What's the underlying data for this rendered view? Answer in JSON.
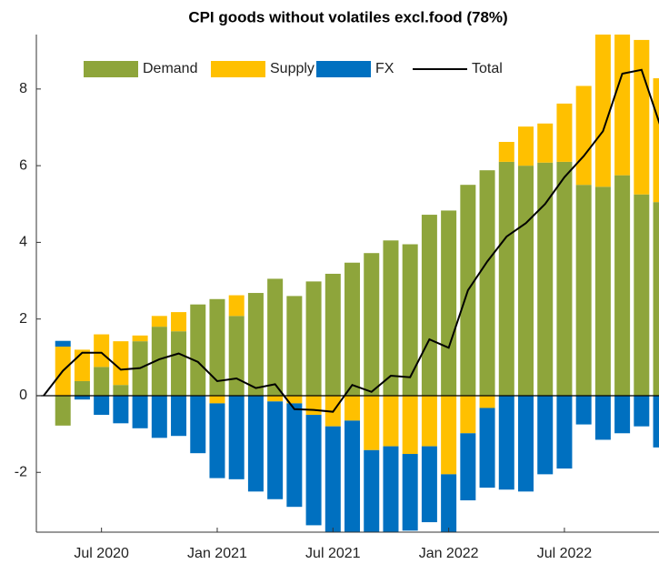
{
  "chart_data": {
    "type": "bar",
    "title": "CPI goods without volatiles excl.food (78%)",
    "categories": [
      null,
      null,
      null,
      "Jul 2020",
      null,
      null,
      null,
      null,
      null,
      "Jan 2021",
      null,
      null,
      null,
      null,
      null,
      "Jul 2021",
      null,
      null,
      null,
      null,
      null,
      "Jan 2022",
      null,
      null,
      null,
      null,
      null,
      "Jul 2022",
      null,
      null,
      null,
      null,
      null
    ],
    "series": [
      {
        "name": "Demand",
        "type": "bar",
        "color": "#8ea53b",
        "values": [
          0,
          -0.78,
          0.38,
          0.75,
          0.28,
          1.42,
          1.8,
          1.68,
          2.38,
          2.52,
          2.08,
          2.68,
          3.05,
          2.6,
          2.98,
          3.18,
          3.47,
          3.72,
          4.05,
          3.95,
          4.72,
          4.83,
          5.5,
          5.88,
          6.1,
          6.0,
          6.08,
          6.1,
          5.5,
          5.45,
          5.75,
          5.25,
          5.05
        ]
      },
      {
        "name": "Supply",
        "type": "bar",
        "color": "#ffc000",
        "values": [
          0,
          1.28,
          0.82,
          0.85,
          1.14,
          0.15,
          0.28,
          0.5,
          0,
          -0.2,
          0.54,
          0,
          -0.15,
          -0.2,
          -0.5,
          -0.8,
          -0.65,
          -1.42,
          -1.32,
          -1.52,
          -1.32,
          -2.05,
          -0.98,
          -0.32,
          0.52,
          1.02,
          1.02,
          1.52,
          2.58,
          4.1,
          3.75,
          4.03,
          3.23
        ]
      },
      {
        "name": "FX",
        "type": "bar",
        "color": "#0070c0",
        "values": [
          0,
          0.15,
          -0.1,
          -0.5,
          -0.72,
          -0.85,
          -1.1,
          -1.05,
          -1.5,
          -1.95,
          -2.18,
          -2.5,
          -2.55,
          -2.7,
          -2.88,
          -2.9,
          -2.95,
          -2.3,
          -2.23,
          -2.0,
          -1.98,
          -1.65,
          -1.75,
          -2.08,
          -2.45,
          -2.5,
          -2.05,
          -1.9,
          -0.75,
          -1.15,
          -0.98,
          -0.8,
          -1.35
        ]
      },
      {
        "name": "Total",
        "type": "line",
        "color": "#000000",
        "values": [
          0,
          0.65,
          1.12,
          1.12,
          0.68,
          0.72,
          0.95,
          1.1,
          0.88,
          0.38,
          0.45,
          0.2,
          0.3,
          -0.35,
          -0.37,
          -0.42,
          0.28,
          0.1,
          0.52,
          0.48,
          1.47,
          1.25,
          2.75,
          3.5,
          4.15,
          4.5,
          5.0,
          5.7,
          6.25,
          6.9,
          8.4,
          8.5,
          7.0
        ]
      }
    ],
    "ylim": [
      -3.56,
      9.42
    ],
    "yticks": [
      -2,
      0,
      2,
      4,
      6,
      8
    ],
    "legend": "top"
  }
}
